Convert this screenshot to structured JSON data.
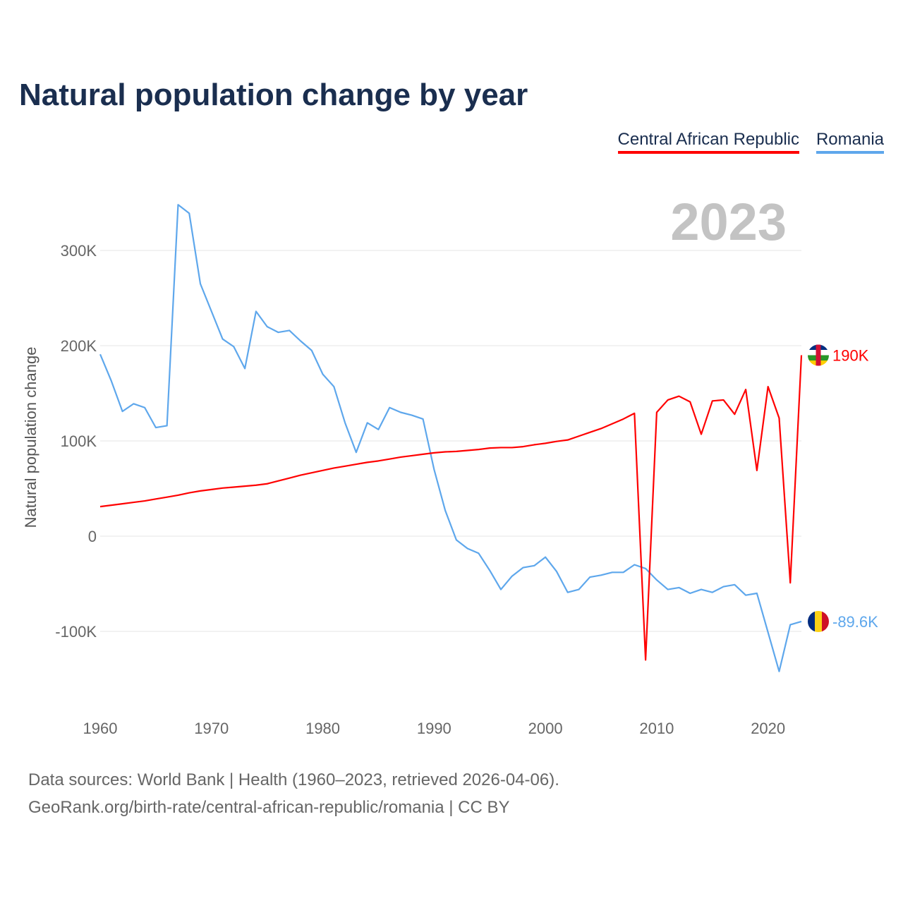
{
  "chart_data": {
    "type": "line",
    "title": "Natural population change by year",
    "ylabel": "Natural population change",
    "xlabel": "",
    "ylim": [
      -170000,
      360000
    ],
    "xlim": [
      1960,
      2023
    ],
    "grid": true,
    "legend_position": "top-right",
    "current_year": "2023",
    "x_ticks": [
      "1960",
      "1970",
      "1980",
      "1990",
      "2000",
      "2010",
      "2020"
    ],
    "y_ticks": [
      {
        "v": -100000,
        "label": "-100K"
      },
      {
        "v": 0,
        "label": "0"
      },
      {
        "v": 100000,
        "label": "100K"
      },
      {
        "v": 200000,
        "label": "200K"
      },
      {
        "v": 300000,
        "label": "300K"
      }
    ],
    "x": [
      1960,
      1961,
      1962,
      1963,
      1964,
      1965,
      1966,
      1967,
      1968,
      1969,
      1970,
      1971,
      1972,
      1973,
      1974,
      1975,
      1976,
      1977,
      1978,
      1979,
      1980,
      1981,
      1982,
      1983,
      1984,
      1985,
      1986,
      1987,
      1988,
      1989,
      1990,
      1991,
      1992,
      1993,
      1994,
      1995,
      1996,
      1997,
      1998,
      1999,
      2000,
      2001,
      2002,
      2003,
      2004,
      2005,
      2006,
      2007,
      2008,
      2009,
      2010,
      2011,
      2012,
      2013,
      2014,
      2015,
      2016,
      2017,
      2018,
      2019,
      2020,
      2021,
      2022,
      2023
    ],
    "series": [
      {
        "name": "Central African Republic",
        "color": "#ff0000",
        "end_label": "190K",
        "values": [
          31000,
          32500,
          34000,
          35500,
          37000,
          39000,
          41000,
          43000,
          45500,
          47500,
          49000,
          50500,
          51500,
          52500,
          53500,
          55000,
          58000,
          61000,
          64000,
          66500,
          69000,
          71500,
          73500,
          75500,
          77500,
          79000,
          81000,
          83000,
          84500,
          86000,
          87500,
          88500,
          89000,
          90000,
          91000,
          92500,
          93000,
          93000,
          94000,
          96000,
          97500,
          99500,
          101000,
          105000,
          109000,
          113000,
          118000,
          123000,
          129000,
          -130000,
          130000,
          143000,
          147000,
          141000,
          107000,
          142000,
          143000,
          128000,
          154000,
          69000,
          157000,
          124000,
          -49000,
          190000
        ]
      },
      {
        "name": "Romania",
        "color": "#5ea7ec",
        "end_label": "-89.6K",
        "values": [
          191000,
          163000,
          131000,
          139000,
          135000,
          114000,
          116000,
          348000,
          339000,
          265000,
          236000,
          207000,
          199000,
          176000,
          236000,
          220000,
          214000,
          216000,
          205000,
          195000,
          170000,
          157000,
          119000,
          88000,
          119000,
          112000,
          135000,
          130000,
          127000,
          123000,
          70000,
          27000,
          -4000,
          -13000,
          -18000,
          -36000,
          -56000,
          -42000,
          -33000,
          -31000,
          -22000,
          -37000,
          -59000,
          -56000,
          -43000,
          -41000,
          -38000,
          -38000,
          -30000,
          -34000,
          -46000,
          -56000,
          -54000,
          -60000,
          -56000,
          -59000,
          -53000,
          -51000,
          -62000,
          -60000,
          -101000,
          -142000,
          -93000,
          -89600
        ]
      }
    ]
  },
  "footer": {
    "line1": "Data sources: World Bank | Health (1960–2023, retrieved 2026-04-06).",
    "line2": "GeoRank.org/birth-rate/central-african-republic/romania | CC BY"
  }
}
